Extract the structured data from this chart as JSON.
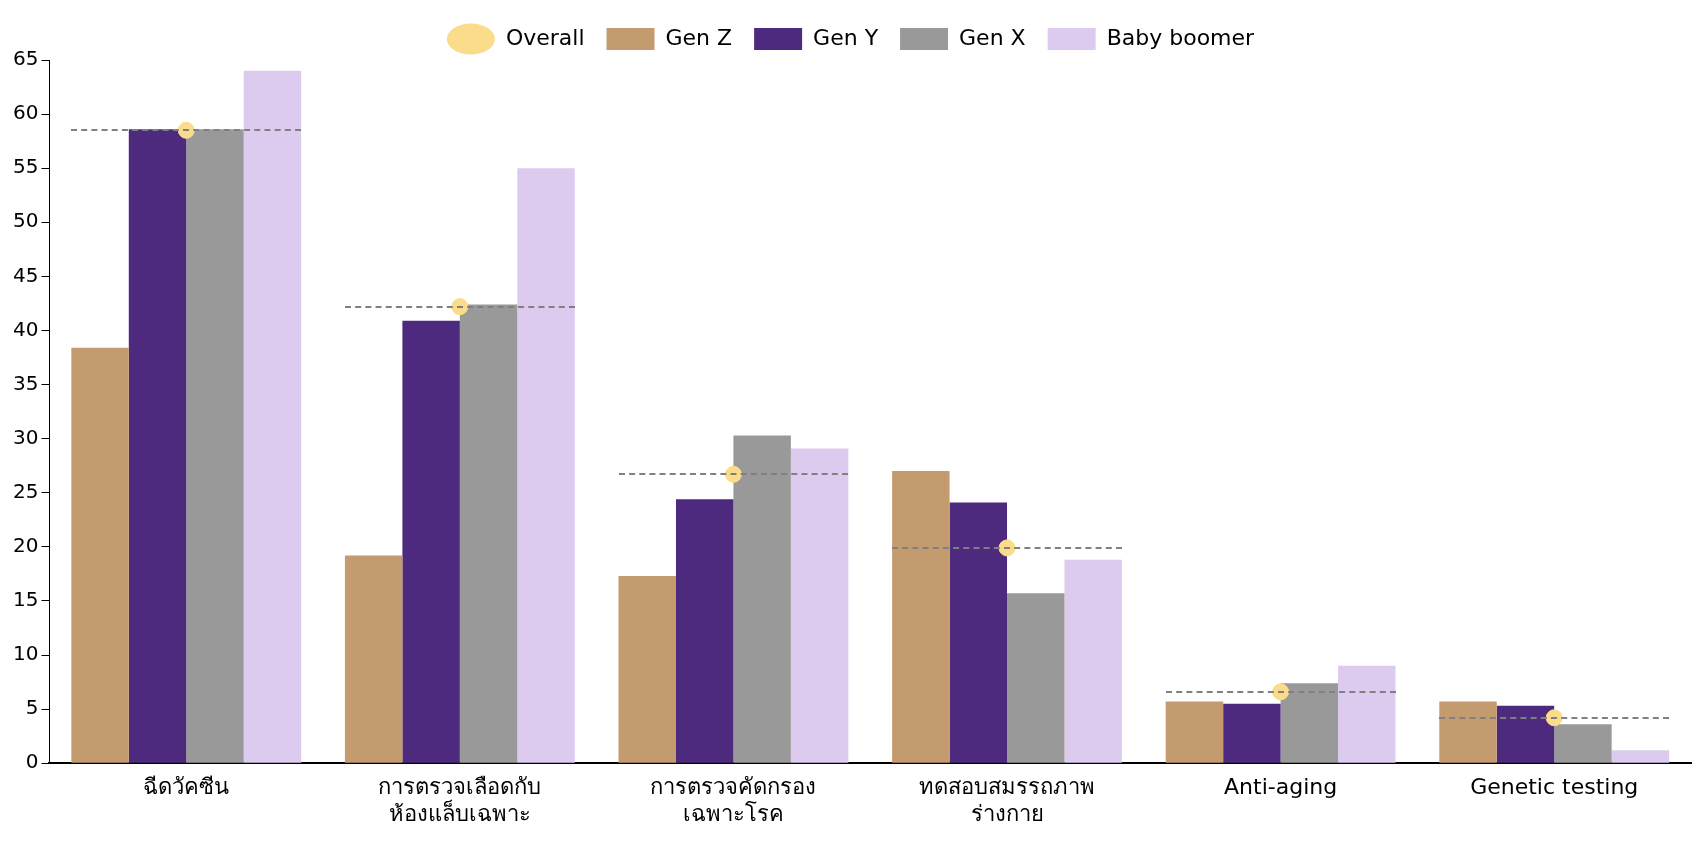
{
  "chart_data": {
    "type": "bar",
    "categories": [
      "ฉีดวัคซีน",
      "การตรวจเลือดกับ\nห้องแล็บเฉพาะ",
      "การตรวจคัดกรอง\nเฉพาะโรค",
      "ทดสอบสมรรถภาพ\nร่างกาย",
      "Anti-aging",
      "Genetic testing"
    ],
    "series": [
      {
        "name": "Overall",
        "type": "scatter",
        "color": "#fbdc8a",
        "line_style": "dashed",
        "marker": "circle",
        "values": [
          58.5,
          42.2,
          26.7,
          19.9,
          6.6,
          4.2
        ]
      },
      {
        "name": "Gen Z",
        "color": "#c49a6f",
        "values": [
          38.4,
          19.2,
          17.3,
          27.0,
          5.7,
          5.7
        ]
      },
      {
        "name": "Gen Y",
        "color": "#4e2a7e",
        "values": [
          58.6,
          40.9,
          24.4,
          24.1,
          5.5,
          5.3
        ]
      },
      {
        "name": "Gen X",
        "color": "#999999",
        "values": [
          58.6,
          42.4,
          30.3,
          15.7,
          7.4,
          3.6
        ]
      },
      {
        "name": "Baby boomer",
        "color": "#dccbee",
        "values": [
          64.0,
          55.0,
          29.1,
          18.8,
          9.0,
          1.2
        ]
      }
    ],
    "ylim": [
      0,
      65
    ],
    "yticks": [
      0,
      5,
      10,
      15,
      20,
      25,
      30,
      35,
      40,
      45,
      50,
      55,
      60,
      65
    ],
    "grid": false,
    "legend": "top"
  }
}
